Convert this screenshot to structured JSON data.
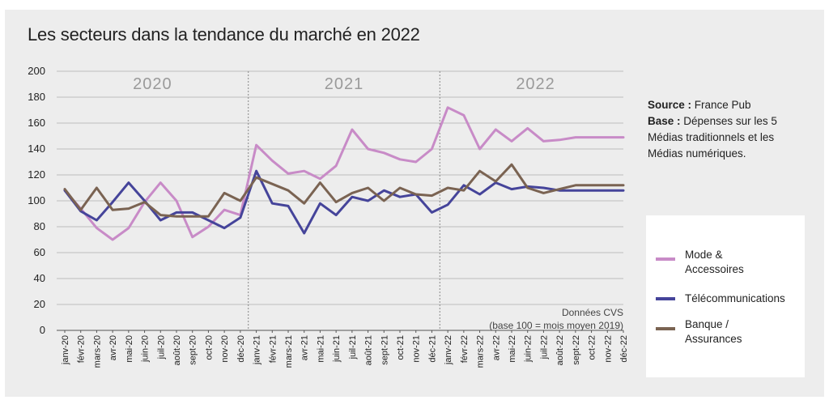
{
  "title": "Les secteurs dans la tendance du marché en 2022",
  "source": {
    "source_label": "Source :",
    "source_value": "France Pub",
    "base_label": "Base :",
    "base_value": "Dépenses sur les 5 Médias traditionnels et les Médias numériques."
  },
  "note": {
    "line1": "Données CVS",
    "line2": "(base 100 = mois moyen 2019)"
  },
  "legend": [
    {
      "label_line1": "Mode &",
      "label_line2": "Accessoires",
      "color": "#c88bc7"
    },
    {
      "label_line1": "Télécommunications",
      "label_line2": "",
      "color": "#45449a"
    },
    {
      "label_line1": "Banque /",
      "label_line2": "Assurances",
      "color": "#7a6352"
    }
  ],
  "chart_data": {
    "type": "line",
    "title": "Les secteurs dans la tendance du marché en 2022",
    "year_labels": [
      "2020",
      "2021",
      "2022"
    ],
    "categories": [
      "janv-20",
      "févr-20",
      "mars-20",
      "avr-20",
      "mai-20",
      "juin-20",
      "juil-20",
      "août-20",
      "sept-20",
      "oct-20",
      "nov-20",
      "déc-20",
      "janv-21",
      "févr-21",
      "mars-21",
      "avr-21",
      "mai-21",
      "juin-21",
      "juil-21",
      "août-21",
      "sept-21",
      "oct-21",
      "nov-21",
      "déc-21",
      "janv-22",
      "févr-22",
      "mars-22",
      "avr-22",
      "mai-22",
      "juin-22",
      "juil-22",
      "août-22",
      "sept-22",
      "oct-22",
      "nov-22",
      "déc-22"
    ],
    "x_tick_labels": [
      "janv-20",
      "févr-20",
      "mars-20",
      "avr-20",
      "mai-20",
      "juin-20",
      "juil-20",
      "août-20",
      "sept-20",
      "oct-20",
      "nov-20",
      "déc-20",
      "janv-21",
      "févr-21",
      "mars-21",
      "avr-21",
      "mai-21",
      "juin-21",
      "juil-21",
      "août-21",
      "sept-21",
      "oct-21",
      "nov-21",
      "déc-21",
      "janv-22",
      "févr-22",
      "mars-22",
      "avr-22",
      "mai-22",
      "juin-22",
      "juil-22",
      "août-22",
      "sept-22",
      "oct-22",
      "nov-22",
      "déc-22"
    ],
    "ylim": [
      0,
      200
    ],
    "yticks": [
      0,
      20,
      40,
      60,
      80,
      100,
      120,
      140,
      160,
      180,
      200
    ],
    "grid": true,
    "legend_position": "right",
    "series": [
      {
        "name": "Mode & Accessoires",
        "color": "#c88bc7",
        "values": [
          108,
          94,
          79,
          70,
          79,
          99,
          114,
          100,
          72,
          80,
          93,
          89,
          143,
          131,
          121,
          123,
          117,
          127,
          155,
          140,
          137,
          132,
          130,
          140,
          172,
          166,
          140,
          155,
          146,
          156,
          146,
          147,
          149,
          149,
          149,
          149
        ]
      },
      {
        "name": "Télécommunications",
        "color": "#45449a",
        "values": [
          108,
          92,
          85,
          99,
          114,
          100,
          85,
          91,
          91,
          85,
          79,
          87,
          123,
          98,
          96,
          75,
          98,
          89,
          103,
          100,
          108,
          103,
          105,
          91,
          97,
          112,
          105,
          114,
          109,
          111,
          110,
          108,
          108,
          108,
          108,
          108
        ]
      },
      {
        "name": "Banque / Assurances",
        "color": "#7a6352",
        "values": [
          109,
          93,
          110,
          93,
          94,
          99,
          89,
          88,
          88,
          88,
          106,
          100,
          118,
          113,
          108,
          98,
          114,
          99,
          106,
          110,
          100,
          110,
          105,
          104,
          110,
          108,
          123,
          115,
          128,
          110,
          106,
          109,
          112,
          112,
          112,
          112
        ]
      }
    ]
  }
}
